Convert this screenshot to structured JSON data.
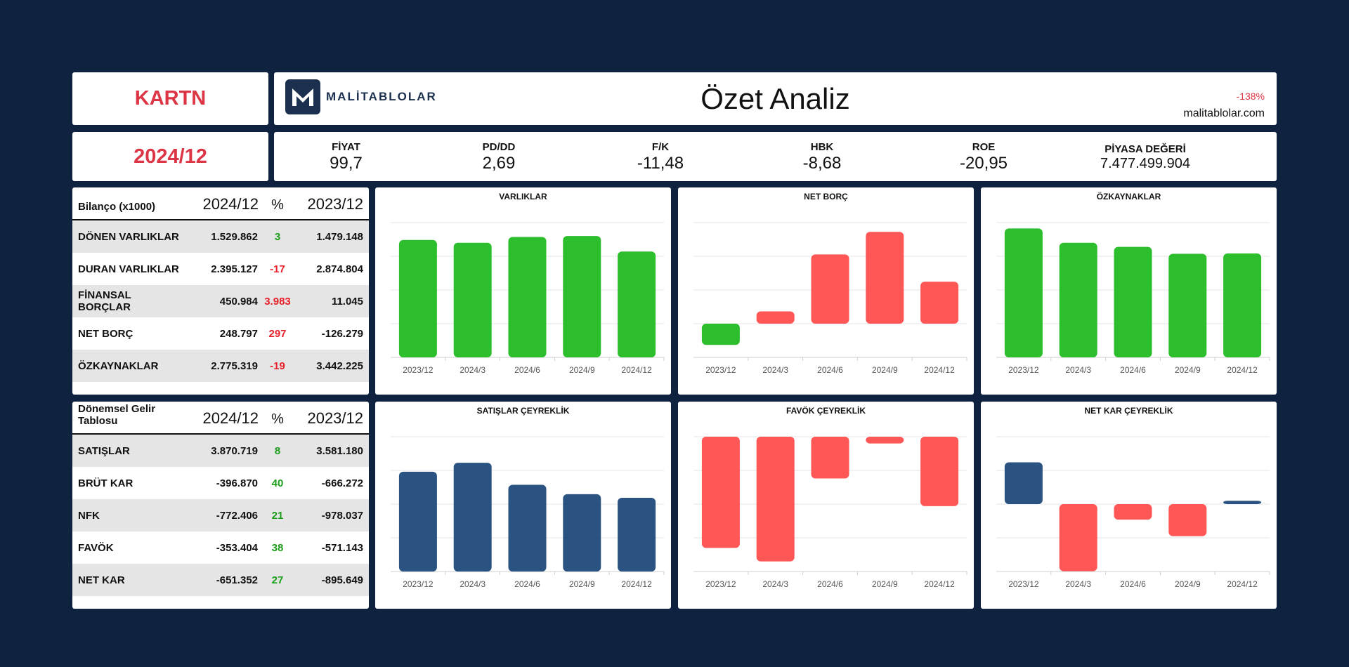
{
  "ticker": "KARTN",
  "period": "2024/12",
  "header": {
    "logo_text": "MALİTABLOLAR",
    "title": "Özet Analiz",
    "change": "-138%",
    "site": "malitablolar.com"
  },
  "metrics": [
    {
      "label": "FİYAT",
      "value": "99,7"
    },
    {
      "label": "PD/DD",
      "value": "2,69"
    },
    {
      "label": "F/K",
      "value": "-11,48"
    },
    {
      "label": "HBK",
      "value": "-8,68"
    },
    {
      "label": "ROE",
      "value": "-20,95"
    },
    {
      "label": "PİYASA DEĞERİ",
      "value": "7.477.499.904"
    }
  ],
  "balance": {
    "title": "Bilanço (x1000)",
    "col_current": "2024/12",
    "col_pct": "%",
    "col_prev": "2023/12",
    "rows": [
      {
        "label": "DÖNEN VARLIKLAR",
        "current": "1.529.862",
        "pct": "3",
        "prev": "1.479.148"
      },
      {
        "label": "DURAN VARLIKLAR",
        "current": "2.395.127",
        "pct": "-17",
        "prev": "2.874.804"
      },
      {
        "label": "FİNANSAL BORÇLAR",
        "current": "450.984",
        "pct": "3.983",
        "prev": "11.045"
      },
      {
        "label": "NET BORÇ",
        "current": "248.797",
        "pct": "297",
        "prev": "-126.279"
      },
      {
        "label": "ÖZKAYNAKLAR",
        "current": "2.775.319",
        "pct": "-19",
        "prev": "3.442.225"
      }
    ]
  },
  "income": {
    "title": "Dönemsel Gelir Tablosu",
    "col_current": "2024/12",
    "col_pct": "%",
    "col_prev": "2023/12",
    "rows": [
      {
        "label": "SATIŞLAR",
        "current": "3.870.719",
        "pct": "8",
        "prev": "3.581.180"
      },
      {
        "label": "BRÜT KAR",
        "current": "-396.870",
        "pct": "40",
        "prev": "-666.272"
      },
      {
        "label": "NFK",
        "current": "-772.406",
        "pct": "21",
        "prev": "-978.037"
      },
      {
        "label": "FAVÖK",
        "current": "-353.404",
        "pct": "38",
        "prev": "-571.143"
      },
      {
        "label": "NET KAR",
        "current": "-651.352",
        "pct": "27",
        "prev": "-895.649"
      }
    ]
  },
  "colors": {
    "positive": "#1a9e1a",
    "negative": "#e8202a",
    "green_bar": "#22bb22",
    "red_bar": "#ff4d4d",
    "navy_bar": "#1f4a7a"
  },
  "chart_data": [
    {
      "id": "varliklar",
      "type": "bar",
      "title": "VARLIKLAR",
      "categories": [
        "2023/12",
        "2024/3",
        "2024/6",
        "2024/9",
        "2024/12"
      ],
      "values": [
        4354000,
        4250000,
        4466000,
        4503000,
        3925000
      ],
      "ylim": [
        0,
        5000000
      ],
      "bar_color": "#22bb22",
      "grid": true
    },
    {
      "id": "netborc",
      "type": "bar",
      "title": "NET BORÇ",
      "categories": [
        "2023/12",
        "2024/3",
        "2024/6",
        "2024/9",
        "2024/12"
      ],
      "values": [
        -126279,
        73000,
        411000,
        545000,
        248797
      ],
      "ylim": [
        -200000,
        600000
      ],
      "bar_color": "#ff4d4d",
      "neg_color": "#22bb22",
      "grid": true
    },
    {
      "id": "ozkaynaklar",
      "type": "bar",
      "title": "ÖZKAYNAKLAR",
      "categories": [
        "2023/12",
        "2024/3",
        "2024/6",
        "2024/9",
        "2024/12"
      ],
      "values": [
        3442225,
        3060000,
        2950000,
        2765000,
        2775319
      ],
      "ylim": [
        0,
        3600000
      ],
      "bar_color": "#22bb22",
      "grid": true
    },
    {
      "id": "satislar",
      "type": "bar",
      "title": "SATIŞLAR ÇEYREKLİK",
      "categories": [
        "2023/12",
        "2024/3",
        "2024/6",
        "2024/9",
        "2024/12"
      ],
      "values": [
        1110000,
        1210000,
        965000,
        860000,
        820000
      ],
      "ylim": [
        0,
        1500000
      ],
      "bar_color": "#1f4a7a",
      "grid": true
    },
    {
      "id": "favok",
      "type": "bar",
      "title": "FAVÖK ÇEYREKLİK",
      "categories": [
        "2023/12",
        "2024/3",
        "2024/6",
        "2024/9",
        "2024/12"
      ],
      "values": [
        -165000,
        -185000,
        -62000,
        -10000,
        -103000
      ],
      "ylim": [
        -200000,
        0
      ],
      "bar_color": "#ff4d4d",
      "grid": true
    },
    {
      "id": "netkar",
      "type": "bar",
      "title": "NET KAR ÇEYREKLİK",
      "categories": [
        "2023/12",
        "2024/3",
        "2024/6",
        "2024/9",
        "2024/12"
      ],
      "values": [
        248000,
        -398000,
        -92000,
        -190000,
        20000
      ],
      "ylim": [
        -400000,
        400000
      ],
      "bar_color": "#1f4a7a",
      "neg_color": "#ff4d4d",
      "grid": true
    }
  ]
}
